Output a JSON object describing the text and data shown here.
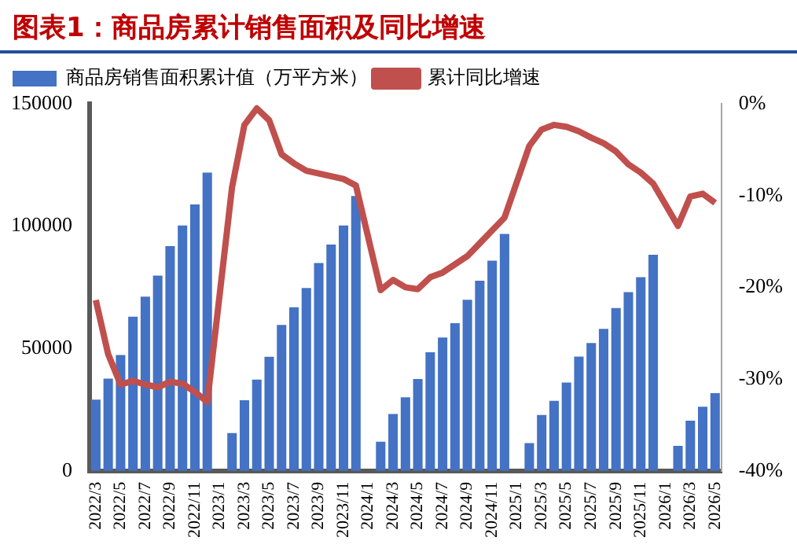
{
  "chart_data": {
    "type": "bar",
    "title": "图表1：商品房累计销售面积及同比增速",
    "categories": [
      "2022/3",
      null,
      "2022/5",
      null,
      "2022/7",
      null,
      "2022/9",
      null,
      "2022/11",
      null,
      "2023/1",
      null,
      "2023/3",
      null,
      "2023/5",
      null,
      "2023/7",
      null,
      "2023/9",
      null,
      "2023/11",
      null,
      "2024/1",
      null,
      "2024/3",
      null,
      "2024/5",
      null,
      "2024/7",
      null,
      "2024/9",
      null,
      "2024/11",
      null,
      "2025/1",
      null,
      "2025/3",
      null,
      "2025/5",
      null,
      "2025/7",
      null,
      "2025/9",
      null,
      "2025/11",
      null,
      "2026/1",
      null,
      "2026/3",
      null,
      "2026/5"
    ],
    "series": [
      {
        "name": "商品房销售面积累计值（万平方米）",
        "color": "#4472c4",
        "values": [
          29100,
          37700,
          47300,
          63000,
          71200,
          79800,
          91800,
          100300,
          108900,
          121900,
          null,
          15400,
          28800,
          37300,
          46600,
          59600,
          66800,
          74700,
          84900,
          92500,
          100300,
          112300,
          null,
          11900,
          23200,
          30000,
          37500,
          48400,
          54500,
          60300,
          69900,
          77700,
          85900,
          96800,
          null,
          11300,
          22800,
          28600,
          36100,
          46700,
          52200,
          58000,
          66500,
          73000,
          79100,
          88300,
          null,
          10200,
          20500,
          26200,
          31700
        ]
      },
      {
        "name": "累计同比增速",
        "type": "line",
        "axis": "y2",
        "color": "#c0504d",
        "values": [
          -21.4,
          -27.3,
          -30.6,
          -30.2,
          -30.6,
          -30.9,
          -30.3,
          -30.5,
          -31.4,
          -32.5,
          null,
          -9.1,
          -2.3,
          -0.5,
          -1.8,
          -5.5,
          -6.5,
          -7.3,
          -7.6,
          -7.9,
          -8.2,
          -8.9,
          null,
          -20.3,
          -19.2,
          -20.0,
          -20.2,
          -18.9,
          -18.4,
          -17.5,
          -16.6,
          -15.2,
          -13.8,
          -12.4,
          null,
          -4.6,
          -2.8,
          -2.3,
          -2.5,
          -3.0,
          -3.7,
          -4.3,
          -5.2,
          -6.6,
          -7.5,
          -8.7,
          null,
          -13.3,
          -10.1,
          -9.8,
          -10.8
        ]
      }
    ],
    "ylim": [
      0,
      150000
    ],
    "yticks": [
      0,
      50000,
      100000,
      150000
    ],
    "y2lim": [
      -40,
      0
    ],
    "y2ticks": [
      {
        "value": -40,
        "label": "-40%"
      },
      {
        "value": -30,
        "label": "-30%"
      },
      {
        "value": -20,
        "label": "-20%"
      },
      {
        "value": -10,
        "label": "-10%"
      },
      {
        "value": 0,
        "label": "0%"
      }
    ],
    "grid": false,
    "legend": "top",
    "marker": "none"
  }
}
